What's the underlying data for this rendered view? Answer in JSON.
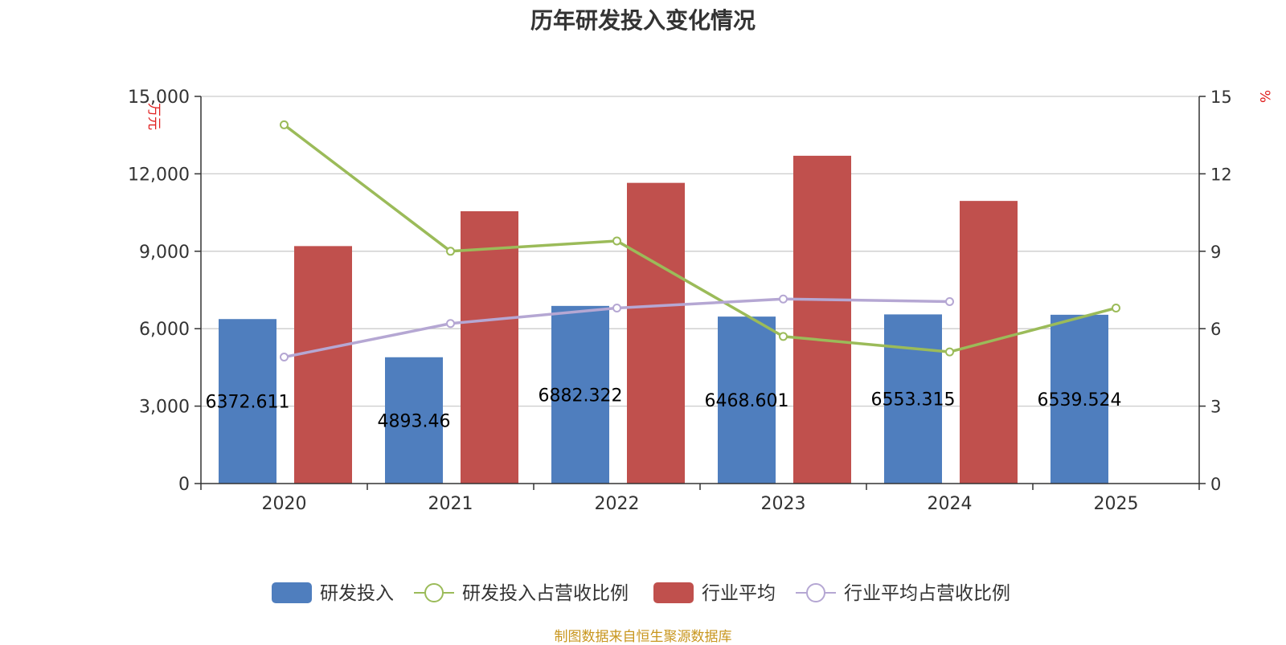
{
  "title": "历年研发投入变化情况",
  "source": "制图数据来自恒生聚源数据库",
  "colors": {
    "rd": "#4f7ebe",
    "rd_ratio": "#9bbb59",
    "industry": "#c0504d",
    "industry_ratio": "#b5a7d3",
    "unit": "#e02020",
    "source": "#c8961e"
  },
  "chart_data": {
    "type": "bar",
    "categories": [
      "2020",
      "2021",
      "2022",
      "2023",
      "2024",
      "2025"
    ],
    "y_left": {
      "unit": "万元",
      "ylim": [
        0,
        15000
      ],
      "ticks": [
        "0",
        "3,000",
        "6,000",
        "9,000",
        "12,000",
        "15,000"
      ],
      "tick_values": [
        0,
        3000,
        6000,
        9000,
        12000,
        15000
      ]
    },
    "y_right": {
      "unit": "%",
      "ylim": [
        0,
        15
      ],
      "ticks": [
        "0",
        "3",
        "6",
        "9",
        "12",
        "15"
      ],
      "tick_values": [
        0,
        3,
        6,
        9,
        12,
        15
      ]
    },
    "grid": true,
    "legend_position": "bottom",
    "series": [
      {
        "name": "研发投入",
        "type": "bar",
        "axis": "left",
        "values": [
          6372.611,
          4893.46,
          6882.322,
          6468.601,
          6553.315,
          6539.524
        ],
        "labels": [
          "6372.611",
          "4893.46",
          "6882.322",
          "6468.601",
          "6553.315",
          "6539.524"
        ]
      },
      {
        "name": "研发投入占营收比例",
        "type": "line",
        "axis": "right",
        "values": [
          13.9,
          9.0,
          9.4,
          5.7,
          5.1,
          6.8
        ]
      },
      {
        "name": "行业平均",
        "type": "bar",
        "axis": "left",
        "values": [
          9200,
          10550,
          11650,
          12700,
          10950,
          null
        ]
      },
      {
        "name": "行业平均占营收比例",
        "type": "line",
        "axis": "right",
        "values": [
          4.9,
          6.2,
          6.8,
          7.15,
          7.05,
          null
        ]
      }
    ]
  }
}
